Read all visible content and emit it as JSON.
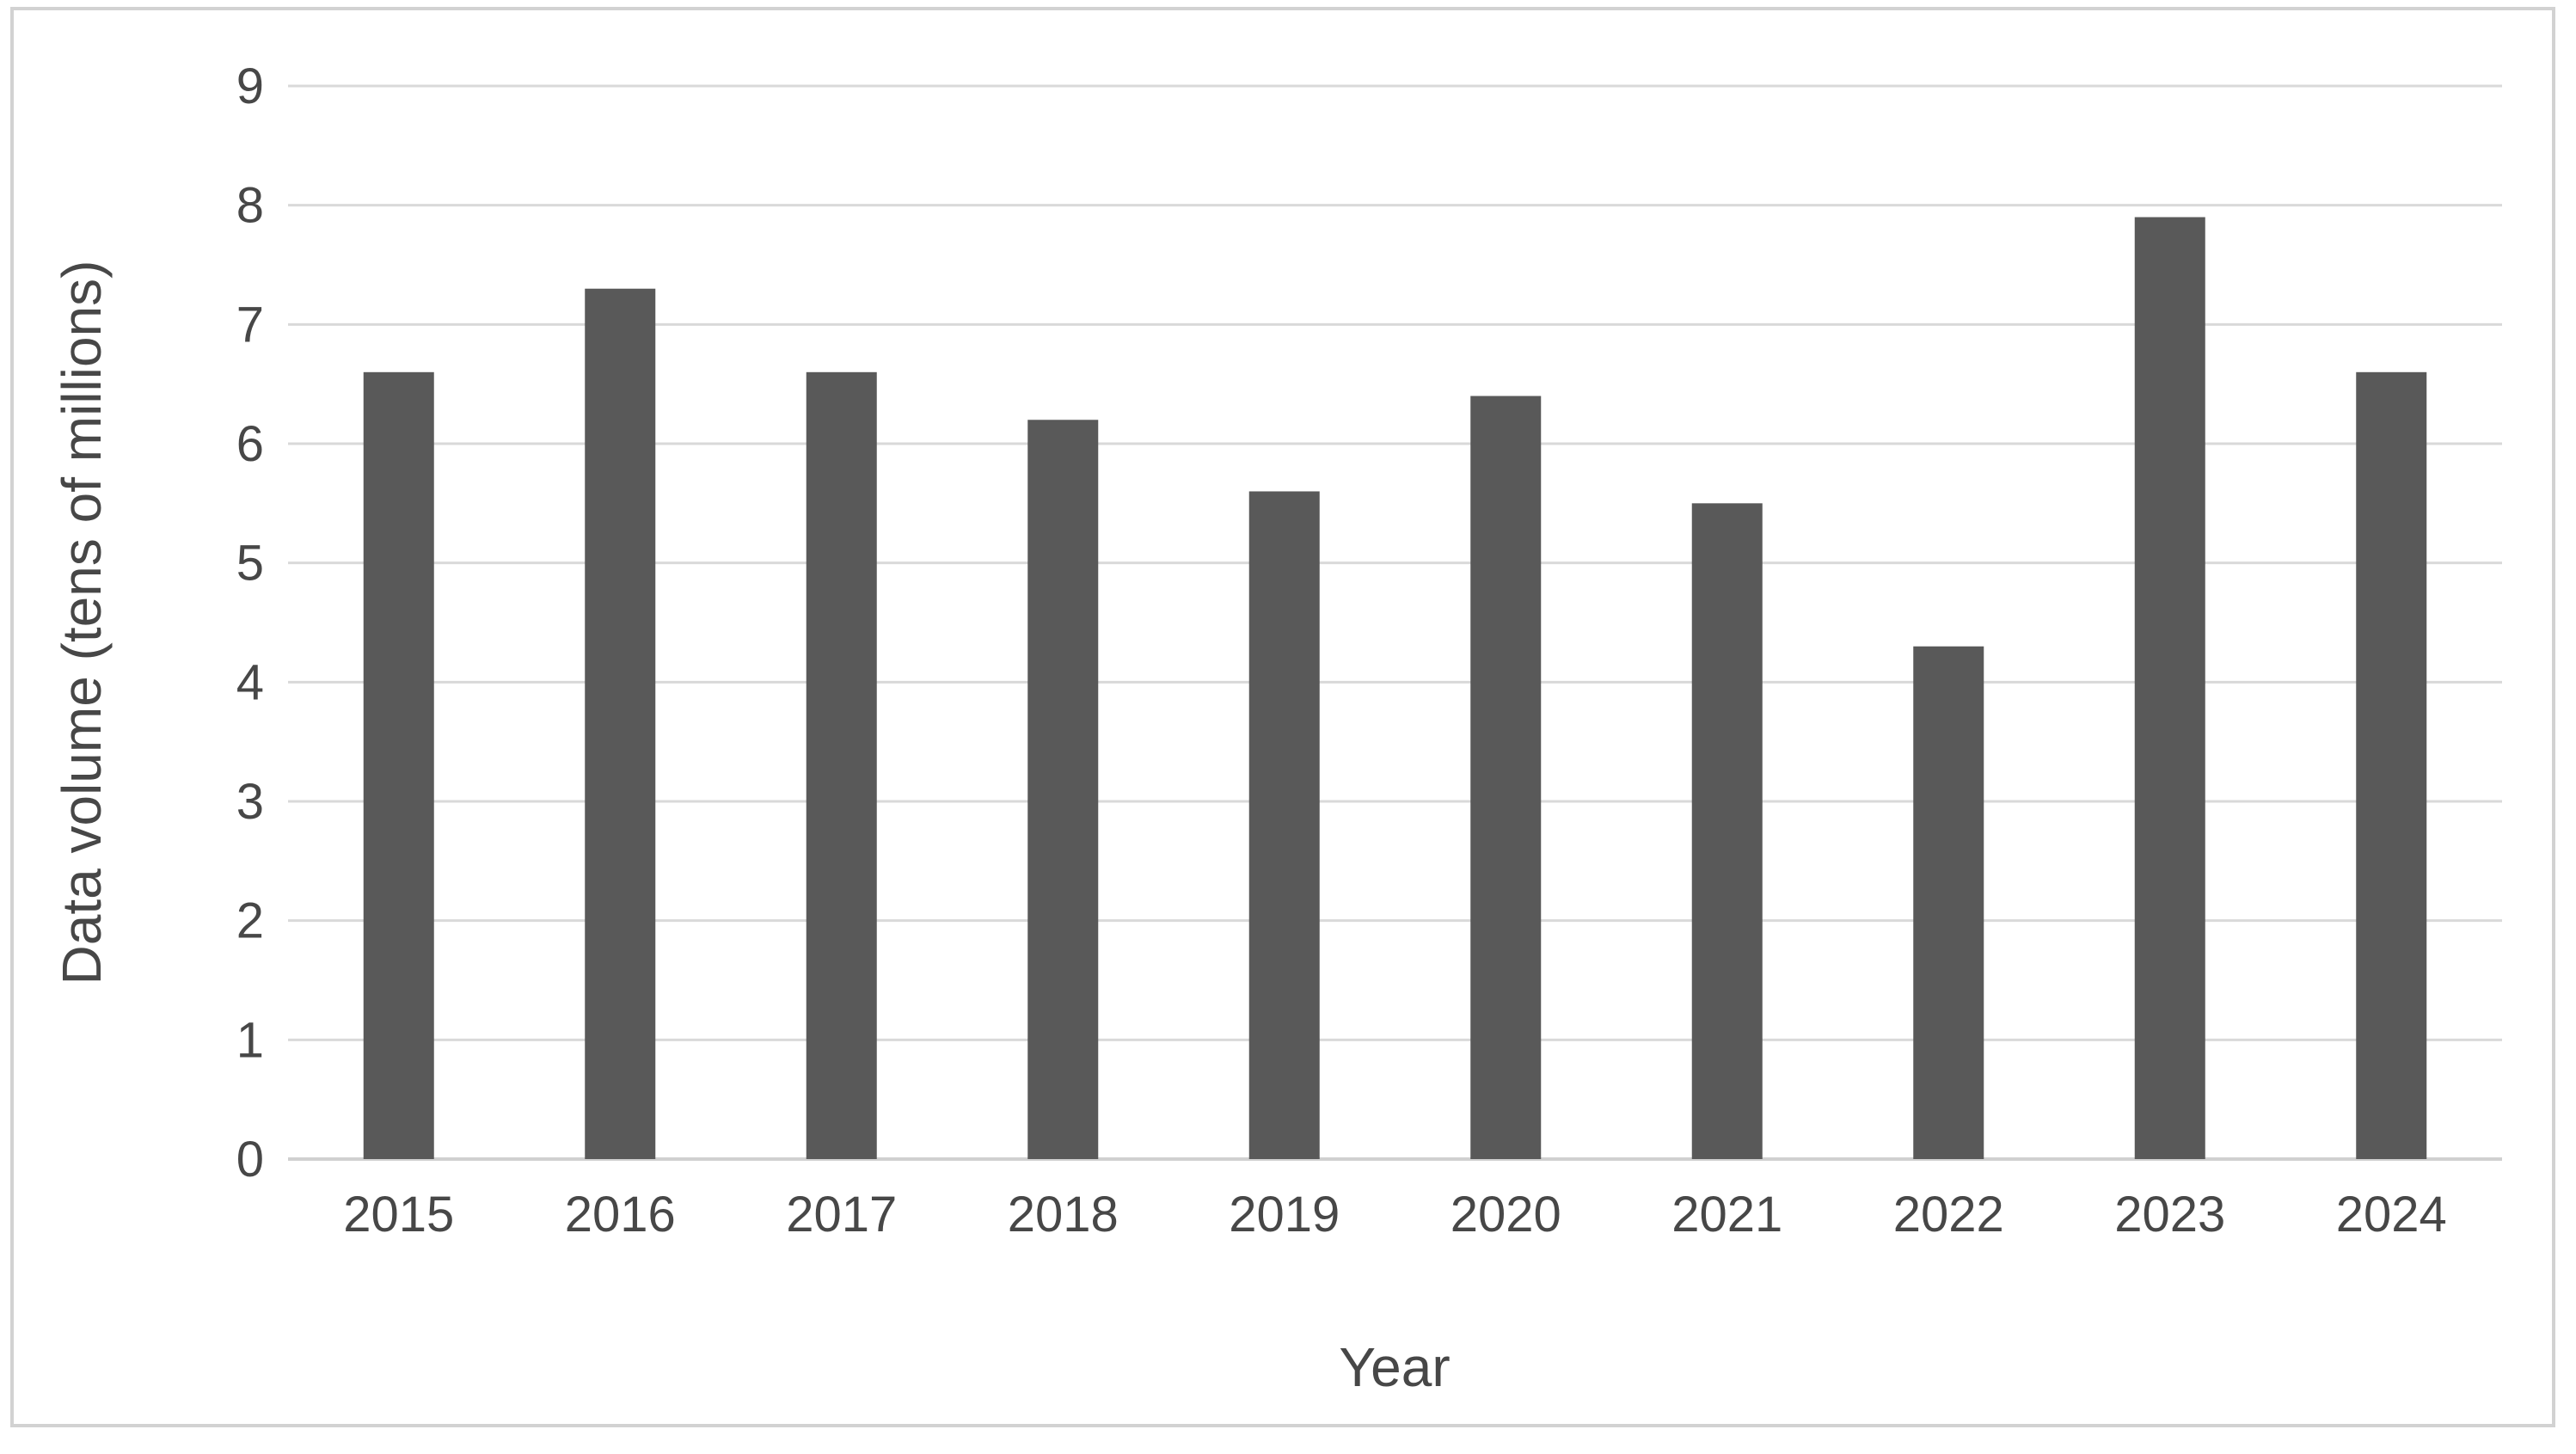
{
  "chart_data": {
    "type": "bar",
    "title": "",
    "xlabel": "Year",
    "ylabel": "Data volume (tens of millions)",
    "categories": [
      "2015",
      "2016",
      "2017",
      "2018",
      "2019",
      "2020",
      "2021",
      "2022",
      "2023",
      "2024"
    ],
    "values": [
      6.6,
      7.3,
      6.6,
      6.2,
      5.6,
      6.4,
      5.5,
      4.3,
      7.9,
      6.6
    ],
    "series_name": "Data volume",
    "ylim": [
      0,
      9
    ],
    "ytick_interval": 1,
    "ytick_labels": [
      "0",
      "1",
      "2",
      "3",
      "4",
      "5",
      "6",
      "7",
      "8",
      "9"
    ],
    "grid": true,
    "legend_position": "none",
    "colors": {
      "bar": "#595959",
      "gridline": "#d9d9d9",
      "axis_line": "#d0d0d0",
      "text": "#474747",
      "frame": "#d2d2d2",
      "background": "#ffffff"
    }
  }
}
